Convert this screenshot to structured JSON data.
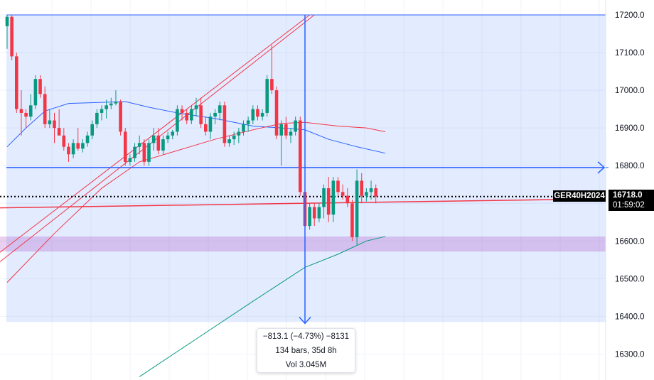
{
  "chart_data": {
    "type": "candlestick",
    "symbol": "GER40H2024",
    "last_price": "16718.0",
    "countdown": "01:59:02",
    "y_axis": {
      "ticks": [
        17200,
        17100,
        17000,
        16900,
        16800,
        16700,
        16600,
        16500,
        16400,
        16300
      ],
      "tick_labels": [
        "17200.0",
        "17100.0",
        "17000.0",
        "16900.0",
        "16800.0",
        "16700.0",
        "16600.0",
        "16500.0",
        "16400.0",
        "16300.0"
      ],
      "range": [
        16235,
        17240
      ]
    },
    "grid": true,
    "candles": [
      [
        17170,
        17200,
        17110,
        17195
      ],
      [
        17195,
        17200,
        17080,
        17090
      ],
      [
        17090,
        17100,
        16940,
        16950
      ],
      [
        16950,
        17000,
        16880,
        16940
      ],
      [
        16940,
        16950,
        16900,
        16930
      ],
      [
        16930,
        16990,
        16920,
        16960
      ],
      [
        16960,
        17040,
        16950,
        17030
      ],
      [
        17030,
        17040,
        16980,
        16990
      ],
      [
        16990,
        17010,
        16900,
        16910
      ],
      [
        16910,
        16950,
        16900,
        16920
      ],
      [
        16920,
        16940,
        16860,
        16900
      ],
      [
        16900,
        16950,
        16880,
        16880
      ],
      [
        16880,
        16900,
        16840,
        16850
      ],
      [
        16850,
        16860,
        16810,
        16830
      ],
      [
        16830,
        16870,
        16820,
        16860
      ],
      [
        16860,
        16900,
        16840,
        16845
      ],
      [
        16845,
        16870,
        16835,
        16860
      ],
      [
        16860,
        16890,
        16850,
        16880
      ],
      [
        16880,
        16920,
        16870,
        16910
      ],
      [
        16910,
        16950,
        16900,
        16940
      ],
      [
        16940,
        16960,
        16920,
        16950
      ],
      [
        16950,
        16975,
        16925,
        16960
      ],
      [
        16960,
        16980,
        16950,
        16965
      ],
      [
        16965,
        17000,
        16960,
        16970
      ],
      [
        16970,
        16975,
        16880,
        16890
      ],
      [
        16890,
        16900,
        16800,
        16810
      ],
      [
        16810,
        16830,
        16800,
        16820
      ],
      [
        16820,
        16860,
        16810,
        16850
      ],
      [
        16850,
        16880,
        16830,
        16860
      ],
      [
        16860,
        16870,
        16800,
        16810
      ],
      [
        16810,
        16870,
        16800,
        16860
      ],
      [
        16860,
        16900,
        16840,
        16880
      ],
      [
        16880,
        16900,
        16830,
        16840
      ],
      [
        16840,
        16880,
        16830,
        16870
      ],
      [
        16870,
        16890,
        16860,
        16880
      ],
      [
        16880,
        16895,
        16870,
        16890
      ],
      [
        16890,
        16960,
        16880,
        16950
      ],
      [
        16950,
        16960,
        16920,
        16940
      ],
      [
        16940,
        16950,
        16910,
        16920
      ],
      [
        16920,
        16960,
        16910,
        16950
      ],
      [
        16950,
        16980,
        16930,
        16960
      ],
      [
        16960,
        16980,
        16900,
        16910
      ],
      [
        16910,
        16930,
        16880,
        16890
      ],
      [
        16890,
        16940,
        16870,
        16930
      ],
      [
        16930,
        16950,
        16910,
        16940
      ],
      [
        16940,
        16970,
        16920,
        16960
      ],
      [
        16960,
        16970,
        16850,
        16860
      ],
      [
        16860,
        16880,
        16850,
        16870
      ],
      [
        16870,
        16890,
        16855,
        16880
      ],
      [
        16880,
        16900,
        16860,
        16890
      ],
      [
        16890,
        16920,
        16880,
        16910
      ],
      [
        16910,
        16930,
        16890,
        16920
      ],
      [
        16920,
        16960,
        16910,
        16950
      ],
      [
        16950,
        16960,
        16920,
        16930
      ],
      [
        16930,
        16950,
        16920,
        16940
      ],
      [
        16940,
        17040,
        16930,
        17030
      ],
      [
        17030,
        17120,
        16990,
        17000
      ],
      [
        17000,
        17010,
        16870,
        16880
      ],
      [
        16880,
        16920,
        16800,
        16910
      ],
      [
        16910,
        16930,
        16870,
        16880
      ],
      [
        16880,
        16900,
        16860,
        16890
      ],
      [
        16890,
        16930,
        16880,
        16920
      ],
      [
        16920,
        16930,
        16720,
        16730
      ],
      [
        16730,
        16750,
        16620,
        16640
      ],
      [
        16640,
        16700,
        16630,
        16690
      ],
      [
        16690,
        16700,
        16640,
        16660
      ],
      [
        16660,
        16700,
        16650,
        16690
      ],
      [
        16690,
        16750,
        16660,
        16740
      ],
      [
        16740,
        16770,
        16650,
        16670
      ],
      [
        16670,
        16770,
        16650,
        16760
      ],
      [
        16760,
        16770,
        16720,
        16730
      ],
      [
        16730,
        16750,
        16710,
        16720
      ],
      [
        16720,
        16740,
        16690,
        16700
      ],
      [
        16700,
        16710,
        16600,
        16610
      ],
      [
        16610,
        16790,
        16590,
        16760
      ],
      [
        16760,
        16780,
        16700,
        16720
      ],
      [
        16720,
        16740,
        16705,
        16730
      ],
      [
        16730,
        16760,
        16710,
        16740
      ],
      [
        16740,
        16750,
        16700,
        16718
      ]
    ],
    "moving_averages": [
      {
        "color": "#2962ff",
        "points": [
          [
            0,
            16850
          ],
          [
            4,
            16900
          ],
          [
            8,
            16945
          ],
          [
            13,
            16965
          ],
          [
            20,
            16968
          ],
          [
            25,
            16970
          ],
          [
            30,
            16955
          ],
          [
            36,
            16940
          ],
          [
            44,
            16925
          ],
          [
            52,
            16905
          ],
          [
            58,
            16900
          ],
          [
            63,
            16895
          ],
          [
            68,
            16870
          ],
          [
            74,
            16850
          ],
          [
            80,
            16833
          ]
        ]
      },
      {
        "color": "#f23645",
        "points": [
          [
            0,
            16490
          ],
          [
            10,
            16620
          ],
          [
            20,
            16740
          ],
          [
            28,
            16810
          ],
          [
            36,
            16840
          ],
          [
            44,
            16870
          ],
          [
            52,
            16895
          ],
          [
            58,
            16912
          ],
          [
            63,
            16915
          ],
          [
            70,
            16905
          ],
          [
            76,
            16900
          ],
          [
            80,
            16890
          ]
        ]
      },
      {
        "color": "#089981",
        "points": [
          [
            28,
            16240
          ],
          [
            40,
            16340
          ],
          [
            52,
            16440
          ],
          [
            63,
            16530
          ],
          [
            70,
            16565
          ],
          [
            76,
            16600
          ],
          [
            80,
            16612
          ]
        ]
      }
    ],
    "drawings": {
      "shaded_range": [
        17200,
        16385
      ],
      "purple_band": [
        16612,
        16572
      ],
      "horizontal_ray_price": 16795,
      "dotted_price": 16718,
      "red_line": [
        [
          0,
          16688
        ],
        [
          127,
          16712
        ]
      ],
      "red_channel": [
        [
          [
            0,
            16545
          ],
          [
            65,
            17200
          ]
        ],
        [
          [
            0,
            16570
          ],
          [
            64,
            17200
          ]
        ]
      ],
      "measure_arrow": {
        "from_price": 17200,
        "to_price": 16385
      }
    },
    "measure": {
      "line1": "−813.1 (−4.73%) −8131",
      "line2": "134 bars, 35d 8h",
      "line3": "Vol 3.045M"
    }
  }
}
